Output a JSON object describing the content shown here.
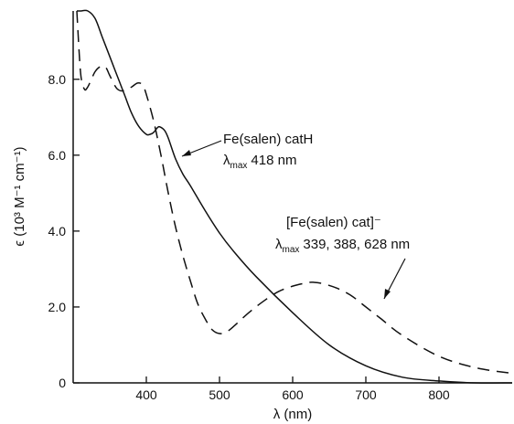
{
  "chart_data": {
    "type": "line",
    "xlabel": "λ (nm)",
    "ylabel": "ϵ (10³ M⁻¹ cm⁻¹)",
    "xlim": [
      300,
      900
    ],
    "ylim": [
      0,
      9.8
    ],
    "xticks": [
      400,
      500,
      600,
      700,
      800
    ],
    "yticks": [
      0,
      2,
      4,
      6,
      8
    ],
    "ytick_labels": [
      "0",
      "2.0",
      "4.0",
      "6.0",
      "8.0"
    ],
    "grid": false,
    "series": [
      {
        "name": "Fe(salen) catH",
        "style": "solid",
        "x": [
          305,
          310,
          320,
          330,
          340,
          350,
          360,
          370,
          380,
          390,
          400,
          405,
          410,
          415,
          418,
          425,
          430,
          440,
          450,
          460,
          480,
          500,
          520,
          550,
          600,
          650,
          700,
          750,
          800,
          850,
          900
        ],
        "y": [
          9.8,
          9.8,
          9.8,
          9.6,
          9.1,
          8.6,
          8.1,
          7.6,
          7.1,
          6.75,
          6.55,
          6.55,
          6.6,
          6.72,
          6.75,
          6.65,
          6.45,
          5.9,
          5.5,
          5.2,
          4.55,
          3.95,
          3.45,
          2.8,
          1.85,
          1.0,
          0.45,
          0.15,
          0.05,
          0.0,
          0.0
        ]
      },
      {
        "name": "[Fe(salen) cat]⁻",
        "style": "dashed",
        "x": [
          305,
          310,
          315,
          320,
          330,
          339,
          345,
          350,
          360,
          370,
          380,
          388,
          395,
          400,
          410,
          420,
          430,
          440,
          450,
          460,
          470,
          480,
          490,
          500,
          510,
          520,
          540,
          560,
          580,
          600,
          620,
          628,
          640,
          660,
          680,
          700,
          720,
          750,
          800,
          850,
          900
        ],
        "y": [
          9.8,
          8.2,
          7.75,
          7.8,
          8.2,
          8.35,
          8.3,
          8.1,
          7.75,
          7.7,
          7.8,
          7.9,
          7.85,
          7.6,
          6.9,
          6.0,
          5.0,
          4.1,
          3.35,
          2.7,
          2.1,
          1.7,
          1.4,
          1.3,
          1.35,
          1.5,
          1.85,
          2.15,
          2.4,
          2.55,
          2.64,
          2.65,
          2.62,
          2.5,
          2.3,
          2.0,
          1.7,
          1.25,
          0.7,
          0.4,
          0.25
        ]
      }
    ],
    "annotations": [
      {
        "line1": "Fe(salen) catH",
        "lambda_symbol": "λ",
        "sub": "max",
        "line2_value": "418 nm"
      },
      {
        "line1": "[Fe(salen) cat]⁻",
        "lambda_symbol": "λ",
        "sub": "max",
        "line2_value": "339, 388, 628 nm"
      }
    ]
  }
}
